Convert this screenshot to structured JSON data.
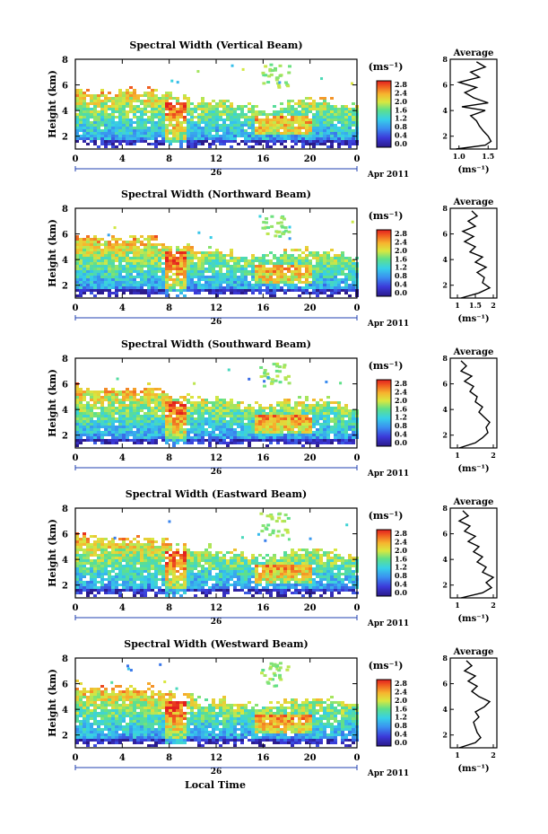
{
  "figure": {
    "xlabel_bottom": "Local Time",
    "date_label": "Apr 2011",
    "day_label": "26",
    "time_ticks": [
      "0",
      "4",
      "8",
      "12",
      "16",
      "20",
      "0"
    ],
    "height_ticks": [
      "2",
      "4",
      "6",
      "8"
    ],
    "height_label": "Height (km)",
    "colorbar_unit": "(ms⁻¹)",
    "colorbar_ticks": [
      "2.8",
      "2.4",
      "2.0",
      "1.6",
      "1.2",
      "0.8",
      "0.4",
      "0.0"
    ],
    "avg_title": "Average",
    "avg_unit": "(ms⁻¹)"
  },
  "chart_data": [
    {
      "type": "heatmap",
      "title": "Spectral Width (Vertical Beam)",
      "x_range_hours": [
        0,
        24
      ],
      "y_range_km": [
        1,
        8
      ],
      "color_range": [
        0.0,
        2.8
      ],
      "average_profile": {
        "type": "line",
        "title": "Average",
        "xlabel": "(ms⁻¹)",
        "x_ticks": [
          "1.0",
          "1.5"
        ],
        "x_range": [
          0.85,
          1.65
        ],
        "height_km": [
          1.0,
          1.3,
          1.6,
          2.0,
          2.4,
          2.8,
          3.2,
          3.6,
          4.0,
          4.3,
          4.6,
          5.0,
          5.4,
          5.8,
          6.2,
          6.6,
          7.0,
          7.4,
          7.8
        ],
        "value": [
          0.95,
          1.45,
          1.55,
          1.5,
          1.42,
          1.35,
          1.3,
          1.2,
          1.45,
          1.05,
          1.5,
          1.25,
          1.1,
          1.3,
          1.0,
          1.35,
          1.2,
          1.45,
          1.3
        ]
      }
    },
    {
      "type": "heatmap",
      "title": "Spectral Width (Northward Beam)",
      "x_range_hours": [
        0,
        24
      ],
      "y_range_km": [
        1,
        8
      ],
      "color_range": [
        0.0,
        2.8
      ],
      "average_profile": {
        "type": "line",
        "title": "Average",
        "xlabel": "(ms⁻¹)",
        "x_ticks": [
          "1",
          "1.5",
          "2"
        ],
        "x_range": [
          0.8,
          2.1
        ],
        "height_km": [
          1.0,
          1.4,
          1.8,
          2.2,
          2.6,
          3.0,
          3.4,
          3.8,
          4.2,
          4.6,
          5.0,
          5.4,
          5.8,
          6.2,
          6.6,
          7.0,
          7.4,
          7.8
        ],
        "value": [
          1.1,
          1.6,
          1.9,
          1.7,
          1.75,
          1.55,
          1.8,
          1.5,
          1.7,
          1.35,
          1.5,
          1.2,
          1.45,
          1.15,
          1.5,
          1.3,
          1.55,
          1.4
        ]
      }
    },
    {
      "type": "heatmap",
      "title": "Spectral Width (Southward Beam)",
      "x_range_hours": [
        0,
        24
      ],
      "y_range_km": [
        1,
        8
      ],
      "color_range": [
        0.0,
        2.8
      ],
      "average_profile": {
        "type": "line",
        "title": "Average",
        "xlabel": "(ms⁻¹)",
        "x_ticks": [
          "1",
          "2"
        ],
        "x_range": [
          0.8,
          2.1
        ],
        "height_km": [
          1.0,
          1.4,
          1.8,
          2.2,
          2.6,
          3.0,
          3.4,
          3.8,
          4.2,
          4.6,
          5.0,
          5.4,
          5.8,
          6.2,
          6.6,
          7.0,
          7.4,
          7.8
        ],
        "value": [
          1.05,
          1.5,
          1.7,
          1.85,
          1.8,
          1.9,
          1.75,
          1.6,
          1.7,
          1.5,
          1.55,
          1.35,
          1.45,
          1.2,
          1.4,
          1.1,
          1.25,
          1.1
        ]
      }
    },
    {
      "type": "heatmap",
      "title": "Spectral Width (Eastward Beam)",
      "x_range_hours": [
        0,
        24
      ],
      "y_range_km": [
        1,
        8
      ],
      "color_range": [
        0.0,
        2.8
      ],
      "average_profile": {
        "type": "line",
        "title": "Average",
        "xlabel": "(ms⁻¹)",
        "x_ticks": [
          "1",
          "2"
        ],
        "x_range": [
          0.8,
          2.1
        ],
        "height_km": [
          1.0,
          1.4,
          1.8,
          2.2,
          2.6,
          3.0,
          3.4,
          3.8,
          4.2,
          4.6,
          5.0,
          5.4,
          5.8,
          6.2,
          6.6,
          7.0,
          7.4,
          7.8
        ],
        "value": [
          1.1,
          1.7,
          1.95,
          1.8,
          2.0,
          1.7,
          1.8,
          1.55,
          1.7,
          1.45,
          1.6,
          1.3,
          1.5,
          1.2,
          1.35,
          1.05,
          1.3,
          1.15
        ]
      }
    },
    {
      "type": "heatmap",
      "title": "Spectral Width (Westward Beam)",
      "x_range_hours": [
        0,
        24
      ],
      "y_range_km": [
        1,
        8
      ],
      "color_range": [
        0.0,
        2.8
      ],
      "average_profile": {
        "type": "line",
        "title": "Average",
        "xlabel": "(ms⁻¹)",
        "x_ticks": [
          "1",
          "2"
        ],
        "x_range": [
          0.8,
          2.1
        ],
        "height_km": [
          1.0,
          1.4,
          1.8,
          2.2,
          2.6,
          3.0,
          3.4,
          3.8,
          4.2,
          4.6,
          5.0,
          5.4,
          5.8,
          6.2,
          6.6,
          7.0,
          7.4,
          7.8
        ],
        "value": [
          1.05,
          1.5,
          1.65,
          1.55,
          1.5,
          1.45,
          1.6,
          1.5,
          1.75,
          1.9,
          1.6,
          1.4,
          1.55,
          1.3,
          1.5,
          1.2,
          1.4,
          1.25
        ]
      }
    }
  ]
}
